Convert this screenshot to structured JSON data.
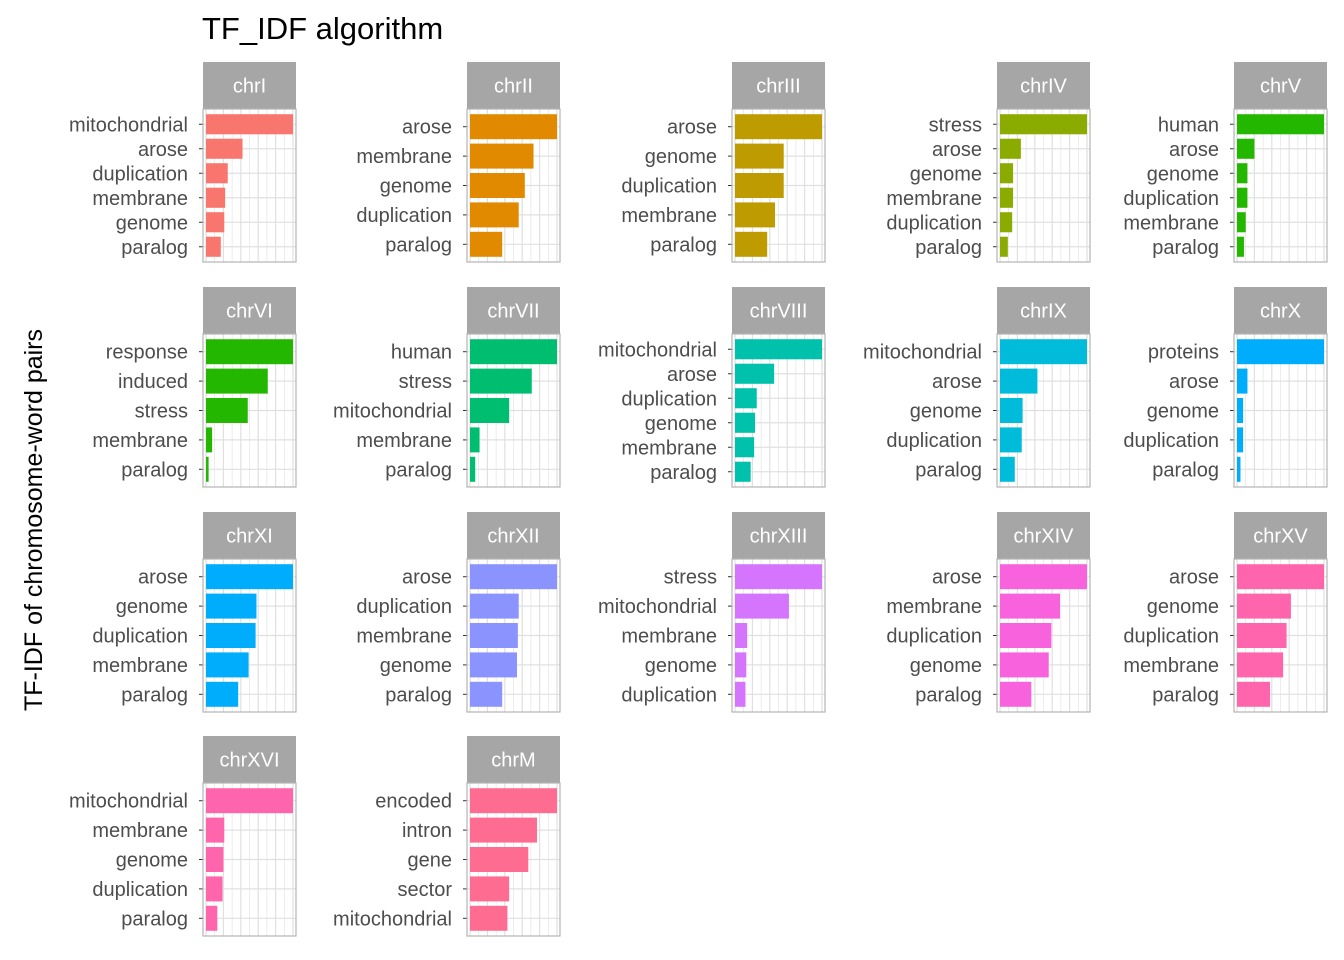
{
  "chart_data": {
    "type": "bar",
    "orientation": "horizontal",
    "layout": "facets-5-columns",
    "title": "TF_IDF algorithm",
    "ylabel": "TF-IDF of chromosome-word pairs",
    "xlabel": "",
    "grid": true,
    "scales": "free",
    "panels": [
      {
        "strip": "chrI",
        "color": "#F8766D",
        "categories": [
          "mitochondrial",
          "arose",
          "duplication",
          "membrane",
          "genome",
          "paralog"
        ],
        "values": [
          1.0,
          0.42,
          0.25,
          0.22,
          0.21,
          0.17
        ]
      },
      {
        "strip": "chrII",
        "color": "#E18A00",
        "categories": [
          "arose",
          "membrane",
          "genome",
          "duplication",
          "paralog"
        ],
        "values": [
          1.0,
          0.73,
          0.63,
          0.56,
          0.37
        ]
      },
      {
        "strip": "chrIII",
        "color": "#BE9C00",
        "categories": [
          "arose",
          "genome",
          "duplication",
          "membrane",
          "paralog"
        ],
        "values": [
          1.0,
          0.56,
          0.56,
          0.46,
          0.37
        ]
      },
      {
        "strip": "chrIV",
        "color": "#8CAB00",
        "categories": [
          "stress",
          "arose",
          "genome",
          "membrane",
          "duplication",
          "paralog"
        ],
        "values": [
          1.0,
          0.24,
          0.15,
          0.15,
          0.14,
          0.09
        ]
      },
      {
        "strip": "chrV",
        "color": "#24B700",
        "categories": [
          "human",
          "arose",
          "genome",
          "duplication",
          "membrane",
          "paralog"
        ],
        "values": [
          1.0,
          0.2,
          0.12,
          0.12,
          0.1,
          0.08
        ]
      },
      {
        "strip": "chrVI",
        "color": "#24B700",
        "categories": [
          "response",
          "induced",
          "stress",
          "membrane",
          "paralog"
        ],
        "values": [
          1.0,
          0.71,
          0.48,
          0.07,
          0.03
        ]
      },
      {
        "strip": "chrVII",
        "color": "#00BE70",
        "categories": [
          "human",
          "stress",
          "mitochondrial",
          "membrane",
          "paralog"
        ],
        "values": [
          1.0,
          0.71,
          0.45,
          0.11,
          0.06
        ]
      },
      {
        "strip": "chrVIII",
        "color": "#00C1AB",
        "categories": [
          "mitochondrial",
          "arose",
          "duplication",
          "genome",
          "membrane",
          "paralog"
        ],
        "values": [
          1.0,
          0.45,
          0.25,
          0.23,
          0.22,
          0.18
        ]
      },
      {
        "strip": "chrIX",
        "color": "#00BBDA",
        "categories": [
          "mitochondrial",
          "arose",
          "genome",
          "duplication",
          "paralog"
        ],
        "values": [
          1.0,
          0.43,
          0.26,
          0.25,
          0.17
        ]
      },
      {
        "strip": "chrX",
        "color": "#00ACFC",
        "categories": [
          "proteins",
          "arose",
          "genome",
          "duplication",
          "paralog"
        ],
        "values": [
          1.0,
          0.12,
          0.07,
          0.07,
          0.04
        ]
      },
      {
        "strip": "chrXI",
        "color": "#00ACFC",
        "categories": [
          "arose",
          "genome",
          "duplication",
          "membrane",
          "paralog"
        ],
        "values": [
          1.0,
          0.58,
          0.57,
          0.49,
          0.37
        ]
      },
      {
        "strip": "chrXII",
        "color": "#8B93FF",
        "categories": [
          "arose",
          "duplication",
          "membrane",
          "genome",
          "paralog"
        ],
        "values": [
          1.0,
          0.56,
          0.55,
          0.54,
          0.37
        ]
      },
      {
        "strip": "chrXIII",
        "color": "#D575FE",
        "categories": [
          "stress",
          "mitochondrial",
          "membrane",
          "genome",
          "duplication"
        ],
        "values": [
          1.0,
          0.62,
          0.14,
          0.13,
          0.12
        ]
      },
      {
        "strip": "chrXIV",
        "color": "#F962DD",
        "categories": [
          "arose",
          "membrane",
          "duplication",
          "genome",
          "paralog"
        ],
        "values": [
          1.0,
          0.69,
          0.59,
          0.56,
          0.36
        ]
      },
      {
        "strip": "chrXV",
        "color": "#FF65AC",
        "categories": [
          "arose",
          "genome",
          "duplication",
          "membrane",
          "paralog"
        ],
        "values": [
          1.0,
          0.62,
          0.57,
          0.53,
          0.38
        ]
      },
      {
        "strip": "chrXVI",
        "color": "#FF65AC",
        "categories": [
          "mitochondrial",
          "membrane",
          "genome",
          "duplication",
          "paralog"
        ],
        "values": [
          1.0,
          0.21,
          0.2,
          0.19,
          0.13
        ]
      },
      {
        "strip": "chrM",
        "color": "#FF6C91",
        "categories": [
          "encoded",
          "intron",
          "gene",
          "sector",
          "mitochondrial"
        ],
        "values": [
          1.0,
          0.77,
          0.67,
          0.45,
          0.43
        ]
      }
    ]
  }
}
